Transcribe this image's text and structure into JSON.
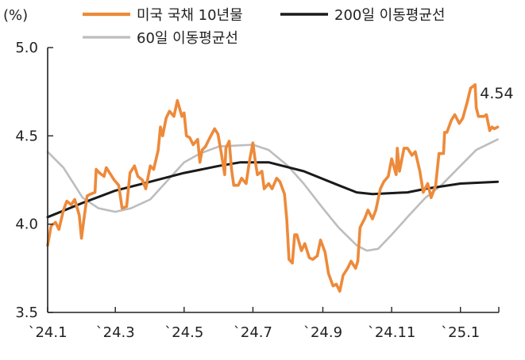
{
  "chart_data": {
    "type": "line",
    "title": "",
    "ylabel": "(%)",
    "xlabel": "",
    "ylim": [
      3.5,
      5.0
    ],
    "yticks": [
      3.5,
      4.0,
      4.5,
      5.0
    ],
    "ytick_labels": [
      "3.5",
      "4.0",
      "4.5",
      "5.0"
    ],
    "xlim": [
      "2024-01-01",
      "2025-02-04"
    ],
    "xticks": [
      "2024-01-01",
      "2024-03-01",
      "2024-05-01",
      "2024-07-01",
      "2024-09-01",
      "2024-11-01",
      "2025-01-01"
    ],
    "xtick_labels": [
      "`24.1",
      "`24.3",
      "`24.5",
      "`24.7",
      "`24.9",
      "`24.11",
      "`25.1"
    ],
    "grid": false,
    "legend_position": "top",
    "annotation": {
      "text": "4.54",
      "series": 0
    },
    "series": [
      {
        "name": "미국 국채 10년물",
        "color": "#ED8A3A",
        "points": [
          [
            "2024-01-01",
            3.88
          ],
          [
            "2024-01-04",
            3.99
          ],
          [
            "2024-01-08",
            4.01
          ],
          [
            "2024-01-11",
            3.97
          ],
          [
            "2024-01-15",
            4.08
          ],
          [
            "2024-01-18",
            4.13
          ],
          [
            "2024-01-22",
            4.11
          ],
          [
            "2024-01-25",
            4.14
          ],
          [
            "2024-01-29",
            4.05
          ],
          [
            "2024-01-31",
            3.92
          ],
          [
            "2024-02-02",
            4.02
          ],
          [
            "2024-02-05",
            4.16
          ],
          [
            "2024-02-08",
            4.17
          ],
          [
            "2024-02-12",
            4.18
          ],
          [
            "2024-02-13",
            4.31
          ],
          [
            "2024-02-16",
            4.29
          ],
          [
            "2024-02-20",
            4.27
          ],
          [
            "2024-02-22",
            4.32
          ],
          [
            "2024-02-26",
            4.28
          ],
          [
            "2024-02-29",
            4.25
          ],
          [
            "2024-03-04",
            4.22
          ],
          [
            "2024-03-07",
            4.09
          ],
          [
            "2024-03-11",
            4.1
          ],
          [
            "2024-03-14",
            4.29
          ],
          [
            "2024-03-18",
            4.33
          ],
          [
            "2024-03-21",
            4.27
          ],
          [
            "2024-03-25",
            4.25
          ],
          [
            "2024-03-28",
            4.2
          ],
          [
            "2024-04-01",
            4.33
          ],
          [
            "2024-04-04",
            4.31
          ],
          [
            "2024-04-08",
            4.42
          ],
          [
            "2024-04-10",
            4.55
          ],
          [
            "2024-04-12",
            4.5
          ],
          [
            "2024-04-15",
            4.6
          ],
          [
            "2024-04-18",
            4.64
          ],
          [
            "2024-04-22",
            4.61
          ],
          [
            "2024-04-25",
            4.7
          ],
          [
            "2024-04-29",
            4.61
          ],
          [
            "2024-05-01",
            4.63
          ],
          [
            "2024-05-03",
            4.5
          ],
          [
            "2024-05-06",
            4.49
          ],
          [
            "2024-05-09",
            4.45
          ],
          [
            "2024-05-13",
            4.48
          ],
          [
            "2024-05-15",
            4.35
          ],
          [
            "2024-05-17",
            4.42
          ],
          [
            "2024-05-20",
            4.44
          ],
          [
            "2024-05-23",
            4.48
          ],
          [
            "2024-05-28",
            4.54
          ],
          [
            "2024-05-31",
            4.51
          ],
          [
            "2024-06-03",
            4.4
          ],
          [
            "2024-06-06",
            4.28
          ],
          [
            "2024-06-07",
            4.43
          ],
          [
            "2024-06-10",
            4.47
          ],
          [
            "2024-06-12",
            4.31
          ],
          [
            "2024-06-14",
            4.22
          ],
          [
            "2024-06-18",
            4.22
          ],
          [
            "2024-06-21",
            4.26
          ],
          [
            "2024-06-25",
            4.23
          ],
          [
            "2024-06-28",
            4.36
          ],
          [
            "2024-07-01",
            4.46
          ],
          [
            "2024-07-03",
            4.36
          ],
          [
            "2024-07-05",
            4.28
          ],
          [
            "2024-07-09",
            4.3
          ],
          [
            "2024-07-11",
            4.2
          ],
          [
            "2024-07-15",
            4.23
          ],
          [
            "2024-07-18",
            4.2
          ],
          [
            "2024-07-22",
            4.26
          ],
          [
            "2024-07-25",
            4.24
          ],
          [
            "2024-07-29",
            4.17
          ],
          [
            "2024-07-31",
            4.03
          ],
          [
            "2024-08-02",
            3.8
          ],
          [
            "2024-08-05",
            3.78
          ],
          [
            "2024-08-07",
            3.94
          ],
          [
            "2024-08-09",
            3.94
          ],
          [
            "2024-08-13",
            3.85
          ],
          [
            "2024-08-16",
            3.89
          ],
          [
            "2024-08-20",
            3.81
          ],
          [
            "2024-08-23",
            3.8
          ],
          [
            "2024-08-27",
            3.82
          ],
          [
            "2024-08-30",
            3.91
          ],
          [
            "2024-09-03",
            3.84
          ],
          [
            "2024-09-06",
            3.72
          ],
          [
            "2024-09-10",
            3.65
          ],
          [
            "2024-09-13",
            3.66
          ],
          [
            "2024-09-16",
            3.62
          ],
          [
            "2024-09-19",
            3.71
          ],
          [
            "2024-09-23",
            3.75
          ],
          [
            "2024-09-26",
            3.79
          ],
          [
            "2024-09-30",
            3.75
          ],
          [
            "2024-10-02",
            3.79
          ],
          [
            "2024-10-04",
            3.98
          ],
          [
            "2024-10-08",
            4.03
          ],
          [
            "2024-10-11",
            4.08
          ],
          [
            "2024-10-15",
            4.03
          ],
          [
            "2024-10-18",
            4.08
          ],
          [
            "2024-10-22",
            4.2
          ],
          [
            "2024-10-25",
            4.24
          ],
          [
            "2024-10-29",
            4.27
          ],
          [
            "2024-11-01",
            4.37
          ],
          [
            "2024-11-05",
            4.28
          ],
          [
            "2024-11-06",
            4.43
          ],
          [
            "2024-11-08",
            4.3
          ],
          [
            "2024-11-12",
            4.43
          ],
          [
            "2024-11-15",
            4.43
          ],
          [
            "2024-11-19",
            4.39
          ],
          [
            "2024-11-22",
            4.41
          ],
          [
            "2024-11-26",
            4.3
          ],
          [
            "2024-11-29",
            4.18
          ],
          [
            "2024-12-03",
            4.23
          ],
          [
            "2024-12-06",
            4.15
          ],
          [
            "2024-12-10",
            4.22
          ],
          [
            "2024-12-13",
            4.4
          ],
          [
            "2024-12-17",
            4.4
          ],
          [
            "2024-12-18",
            4.52
          ],
          [
            "2024-12-20",
            4.52
          ],
          [
            "2024-12-24",
            4.59
          ],
          [
            "2024-12-27",
            4.62
          ],
          [
            "2024-12-31",
            4.57
          ],
          [
            "2025-01-03",
            4.6
          ],
          [
            "2025-01-07",
            4.69
          ],
          [
            "2025-01-10",
            4.77
          ],
          [
            "2025-01-14",
            4.79
          ],
          [
            "2025-01-15",
            4.66
          ],
          [
            "2025-01-17",
            4.61
          ],
          [
            "2025-01-22",
            4.61
          ],
          [
            "2025-01-24",
            4.62
          ],
          [
            "2025-01-27",
            4.53
          ],
          [
            "2025-01-29",
            4.55
          ],
          [
            "2025-01-31",
            4.54
          ],
          [
            "2025-02-03",
            4.55
          ]
        ]
      },
      {
        "name": "200일 이동평균선",
        "color": "#1A1A1A",
        "points": [
          [
            "2024-01-01",
            4.04
          ],
          [
            "2024-02-01",
            4.12
          ],
          [
            "2024-03-01",
            4.19
          ],
          [
            "2024-04-01",
            4.24
          ],
          [
            "2024-05-01",
            4.29
          ],
          [
            "2024-06-01",
            4.33
          ],
          [
            "2024-06-20",
            4.35
          ],
          [
            "2024-07-15",
            4.35
          ],
          [
            "2024-08-15",
            4.3
          ],
          [
            "2024-09-15",
            4.22
          ],
          [
            "2024-10-01",
            4.18
          ],
          [
            "2024-10-15",
            4.17
          ],
          [
            "2024-11-15",
            4.18
          ],
          [
            "2024-12-01",
            4.2
          ],
          [
            "2025-01-01",
            4.23
          ],
          [
            "2025-02-03",
            4.24
          ]
        ]
      },
      {
        "name": "60일 이동평균선",
        "color": "#BDBDBD",
        "points": [
          [
            "2024-01-01",
            4.41
          ],
          [
            "2024-01-15",
            4.32
          ],
          [
            "2024-02-01",
            4.15
          ],
          [
            "2024-02-15",
            4.09
          ],
          [
            "2024-03-01",
            4.07
          ],
          [
            "2024-03-15",
            4.09
          ],
          [
            "2024-04-01",
            4.14
          ],
          [
            "2024-05-01",
            4.35
          ],
          [
            "2024-05-15",
            4.4
          ],
          [
            "2024-06-01",
            4.44
          ],
          [
            "2024-07-01",
            4.45
          ],
          [
            "2024-07-15",
            4.42
          ],
          [
            "2024-08-01",
            4.33
          ],
          [
            "2024-08-15",
            4.23
          ],
          [
            "2024-09-01",
            4.09
          ],
          [
            "2024-09-15",
            3.98
          ],
          [
            "2024-10-01",
            3.88
          ],
          [
            "2024-10-10",
            3.85
          ],
          [
            "2024-10-20",
            3.86
          ],
          [
            "2024-11-01",
            3.94
          ],
          [
            "2024-11-15",
            4.04
          ],
          [
            "2024-12-01",
            4.15
          ],
          [
            "2024-12-15",
            4.22
          ],
          [
            "2025-01-01",
            4.33
          ],
          [
            "2025-01-15",
            4.42
          ],
          [
            "2025-02-03",
            4.48
          ]
        ]
      }
    ]
  }
}
